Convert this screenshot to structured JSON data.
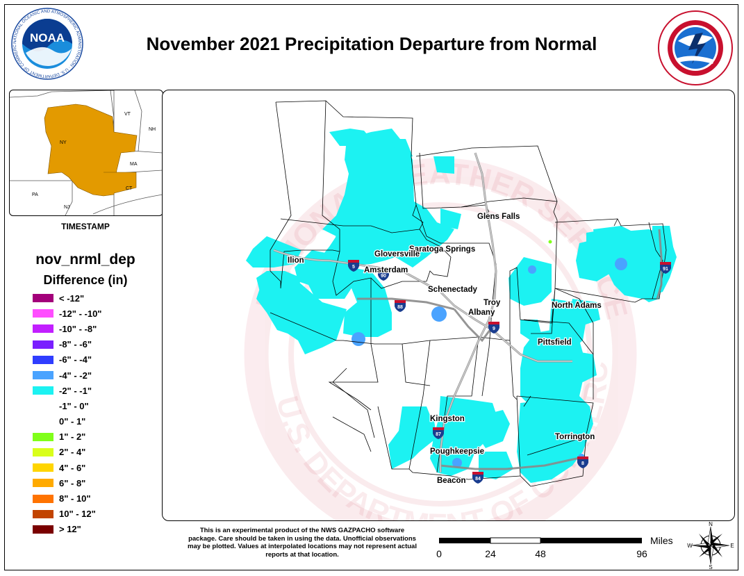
{
  "title": "November 2021 Precipitation Departure from Normal",
  "logos": {
    "noaa": {
      "text": "NOAA",
      "ring_text": "NATIONAL OCEANIC AND ATMOSPHERIC ADMINISTRATION · U.S. DEPARTMENT OF COMMERCE"
    },
    "nws": {
      "ring_text": "NATIONAL WEATHER SERVICE · U.S. DEPARTMENT OF COMMERCE"
    }
  },
  "inset": {
    "labels": [
      "VT",
      "NH",
      "NY",
      "MA",
      "CT",
      "PA",
      "NJ"
    ],
    "highlight_color": "#e39a00"
  },
  "timestamp_label": "TIMESTAMP",
  "legend": {
    "title": "nov_nrml_dep",
    "subtitle": "Difference (in)",
    "items": [
      {
        "label": "< -12\"",
        "color": "#a3007a"
      },
      {
        "label": "-12\" - -10\"",
        "color": "#ff4dff"
      },
      {
        "label": "-10\" - -8\"",
        "color": "#c21fff"
      },
      {
        "label": "-8\" - -6\"",
        "color": "#7a1fff"
      },
      {
        "label": "-6\" - -4\"",
        "color": "#2f3dff"
      },
      {
        "label": "-4\" - -2\"",
        "color": "#4aa3ff"
      },
      {
        "label": "-2\" - -1\"",
        "color": "#1cf2f2"
      },
      {
        "label": "-1\" - 0\"",
        "color": "#ffffff"
      },
      {
        "label": "0\" - 1\"",
        "color": "#ffffff"
      },
      {
        "label": "1\" - 2\"",
        "color": "#80ff1a"
      },
      {
        "label": "2\" - 4\"",
        "color": "#d9ff1a"
      },
      {
        "label": "4\" - 6\"",
        "color": "#ffd500"
      },
      {
        "label": "6\" - 8\"",
        "color": "#ffaa00"
      },
      {
        "label": "8\" - 10\"",
        "color": "#ff7300"
      },
      {
        "label": "10\" - 12\"",
        "color": "#c24400"
      },
      {
        "label": "> 12\"",
        "color": "#7a0000"
      }
    ]
  },
  "cities": [
    "Glens Falls",
    "Saratoga Springs",
    "Gloversville",
    "Amsterdam",
    "Ilion",
    "Schenectady",
    "Troy",
    "Albany",
    "North Adams",
    "Pittsfield",
    "Kingston",
    "Poughkeepsie",
    "Beacon",
    "Torrington"
  ],
  "interstates": [
    "5",
    "90",
    "88",
    "9",
    "87",
    "84",
    "8",
    "91"
  ],
  "watermark": {
    "top": "NATIONAL WEATHER SERVICE",
    "bottom": "U.S. DEPARTMENT OF COMMERCE"
  },
  "disclaimer": "This is an experimental product of the NWS GAZPACHO software package. Care should be taken in using the data. Unofficial observations may be plotted. Values at interpolated locations may not represent actual reports at that location.",
  "scale": {
    "unit": "Miles",
    "ticks": [
      "0",
      "24",
      "48",
      "96"
    ]
  },
  "compass": {
    "n": "N",
    "s": "S",
    "e": "E",
    "w": "W"
  }
}
